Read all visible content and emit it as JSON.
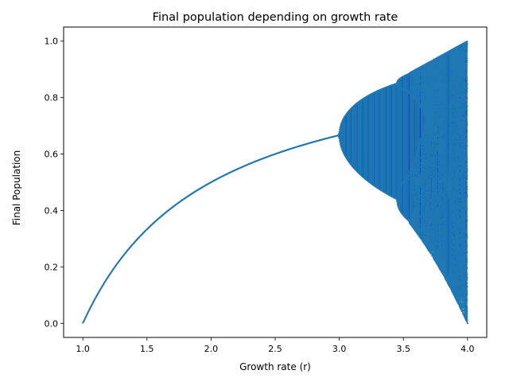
{
  "chart_data": {
    "type": "scatter",
    "title": "Final population depending on growth rate",
    "xlabel": "Growth rate (r)",
    "ylabel": "Final Population",
    "xlim": [
      0.85,
      4.15
    ],
    "ylim": [
      -0.05,
      1.05
    ],
    "xticks": [
      1.0,
      1.5,
      2.0,
      2.5,
      3.0,
      3.5,
      4.0
    ],
    "xtick_labels": [
      "1.0",
      "1.5",
      "2.0",
      "2.5",
      "3.0",
      "3.5",
      "4.0"
    ],
    "yticks": [
      0.0,
      0.2,
      0.4,
      0.6,
      0.8,
      1.0
    ],
    "ytick_labels": [
      "0.0",
      "0.2",
      "0.4",
      "0.6",
      "0.8",
      "1.0"
    ],
    "grid": false,
    "legend": "none",
    "series": [
      {
        "model": "logistic map x(n+1) = r * x(n) * (1 - x(n))",
        "r_range": [
          1.0,
          4.0
        ],
        "color": "#1f77b4"
      }
    ]
  }
}
